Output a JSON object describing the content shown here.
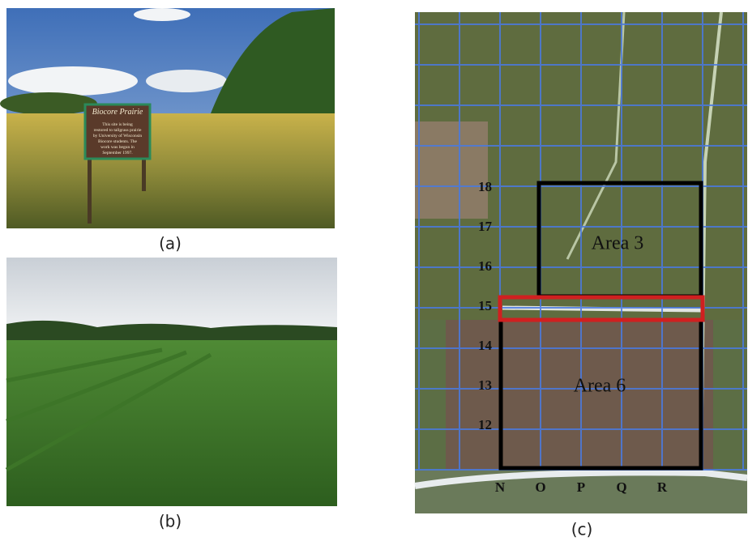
{
  "panels": [
    {
      "label": "(a)"
    },
    {
      "label": "(b)"
    },
    {
      "label": "(c)"
    }
  ],
  "sign": {
    "title": "Biocore Prairie",
    "lines": [
      "This site is being",
      "restored to tallgrass prairie",
      "by University of Wisconsin",
      "Biocore students. The",
      "work was begun in",
      "September 1997."
    ]
  },
  "map": {
    "row_labels": [
      "18",
      "17",
      "16",
      "15",
      "14",
      "13",
      "12"
    ],
    "column_labels": [
      "N",
      "O",
      "P",
      "Q",
      "R"
    ],
    "areas": [
      "Area 3",
      "Area 6"
    ]
  }
}
